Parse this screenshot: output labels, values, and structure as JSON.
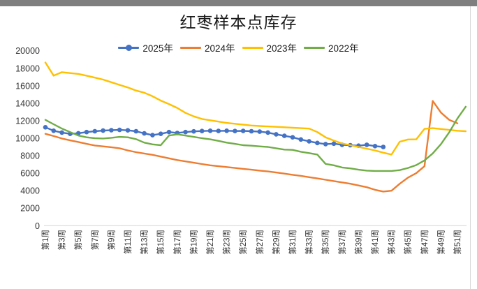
{
  "window": {
    "top_strip_color": "#7f7f7f"
  },
  "chart_data": {
    "type": "line",
    "title": "红枣样本点库存",
    "xlabel": "",
    "ylabel": "",
    "grid": false,
    "legend_position": "top",
    "y_axis": {
      "min": 0,
      "max": 20000,
      "step": 2000,
      "tick_labels": [
        "0",
        "2000",
        "4000",
        "6000",
        "8000",
        "10000",
        "12000",
        "14000",
        "16000",
        "18000",
        "20000"
      ]
    },
    "x_axis_unit": "week",
    "x_tick_labels": [
      "第1周",
      "第3周",
      "第5周",
      "第7周",
      "第9周",
      "第11周",
      "第13周",
      "第15周",
      "第17周",
      "第19周",
      "第21周",
      "第23周",
      "第25周",
      "第27周",
      "第29周",
      "第31周",
      "第33周",
      "第35周",
      "第37周",
      "第39周",
      "第41周",
      "第43周",
      "第45周",
      "第47周",
      "第49周",
      "第51周"
    ],
    "weeks_total": 52,
    "series": [
      {
        "name": "2025年",
        "color": "#4472C4",
        "marker": true,
        "start_week": 1,
        "values": [
          11250,
          10850,
          10650,
          10500,
          10570,
          10700,
          10800,
          10870,
          10920,
          10950,
          10900,
          10800,
          10550,
          10350,
          10500,
          10700,
          10600,
          10700,
          10780,
          10820,
          10850,
          10830,
          10850,
          10820,
          10840,
          10800,
          10750,
          10650,
          10450,
          10270,
          10100,
          9860,
          9650,
          9460,
          9330,
          9380,
          9250,
          9200,
          9150,
          9250,
          9100,
          9000
        ]
      },
      {
        "name": "2024年",
        "color": "#ED7D31",
        "marker": false,
        "start_week": 1,
        "values": [
          10500,
          10250,
          9970,
          9750,
          9570,
          9350,
          9170,
          9070,
          8970,
          8850,
          8600,
          8400,
          8250,
          8100,
          7900,
          7700,
          7500,
          7350,
          7200,
          7050,
          6900,
          6800,
          6700,
          6600,
          6500,
          6400,
          6300,
          6200,
          6080,
          5950,
          5820,
          5700,
          5550,
          5400,
          5250,
          5100,
          4950,
          4800,
          4600,
          4400,
          4100,
          3900,
          4000,
          4800,
          5500,
          6000,
          6800,
          14260,
          12930,
          12100,
          11700
        ]
      },
      {
        "name": "2023年",
        "color": "#FFC000",
        "marker": false,
        "start_week": 1,
        "values": [
          18660,
          17150,
          17550,
          17450,
          17350,
          17150,
          16930,
          16700,
          16400,
          16100,
          15800,
          15450,
          15200,
          14800,
          14300,
          13900,
          13460,
          12900,
          12500,
          12200,
          12050,
          11900,
          11750,
          11650,
          11550,
          11450,
          11400,
          11350,
          11300,
          11250,
          11200,
          11150,
          11100,
          10700,
          10100,
          9730,
          9400,
          9200,
          9000,
          8800,
          8600,
          8350,
          8130,
          9600,
          9860,
          9870,
          11070,
          11150,
          11050,
          10950,
          10850,
          10800
        ]
      },
      {
        "name": "2022年",
        "color": "#70AD47",
        "marker": false,
        "start_week": 1,
        "values": [
          12100,
          11600,
          11100,
          10700,
          10300,
          10100,
          10000,
          9970,
          10050,
          10150,
          10100,
          9900,
          9500,
          9300,
          9200,
          10300,
          10450,
          10300,
          10150,
          10000,
          9870,
          9700,
          9500,
          9350,
          9200,
          9150,
          9070,
          9000,
          8850,
          8700,
          8670,
          8450,
          8300,
          8130,
          7060,
          6900,
          6660,
          6550,
          6400,
          6300,
          6260,
          6260,
          6260,
          6350,
          6600,
          6930,
          7460,
          8260,
          9330,
          10670,
          12260,
          13600
        ]
      }
    ],
    "axis_color": "#d9d9d9",
    "tick_text_color": "#333333"
  }
}
